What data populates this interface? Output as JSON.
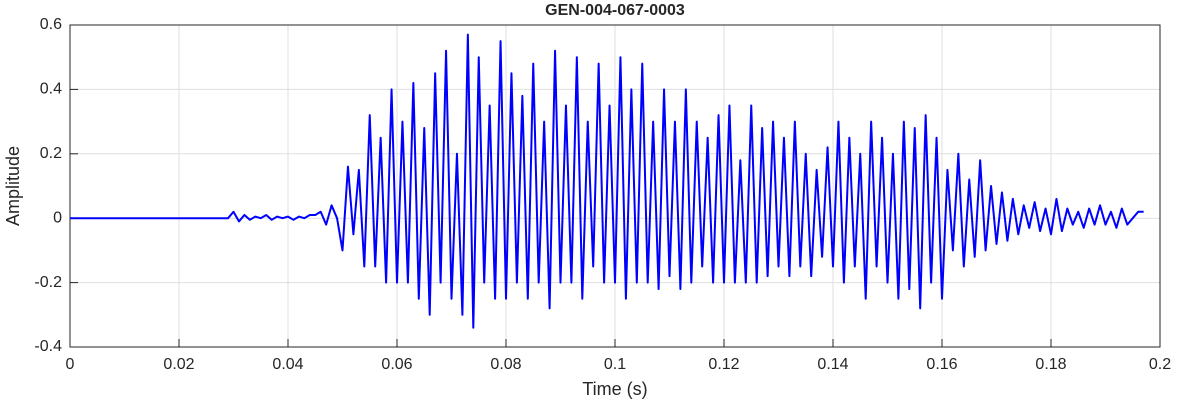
{
  "chart_data": {
    "type": "line",
    "title": "GEN-004-067-0003",
    "x_label": "Time (s)",
    "y_label": "Amplitude",
    "x": [
      0,
      0.001,
      0.002,
      0.003,
      0.004,
      0.005,
      0.006,
      0.007,
      0.008,
      0.009,
      0.01,
      0.011,
      0.012,
      0.013,
      0.014,
      0.015,
      0.016,
      0.017,
      0.018,
      0.019,
      0.02,
      0.021,
      0.022,
      0.023,
      0.024,
      0.025,
      0.026,
      0.027,
      0.028,
      0.029,
      0.03,
      0.031,
      0.032,
      0.033,
      0.034,
      0.035,
      0.036,
      0.037,
      0.038,
      0.039,
      0.04,
      0.041,
      0.042,
      0.043,
      0.044,
      0.045,
      0.046,
      0.047,
      0.048,
      0.049,
      0.05,
      0.051,
      0.052,
      0.053,
      0.054,
      0.055,
      0.056,
      0.057,
      0.058,
      0.059,
      0.06,
      0.061,
      0.062,
      0.063,
      0.064,
      0.065,
      0.066,
      0.067,
      0.068,
      0.069,
      0.07,
      0.071,
      0.072,
      0.073,
      0.074,
      0.075,
      0.076,
      0.077,
      0.078,
      0.079,
      0.08,
      0.081,
      0.082,
      0.083,
      0.084,
      0.085,
      0.086,
      0.087,
      0.088,
      0.089,
      0.09,
      0.091,
      0.092,
      0.093,
      0.094,
      0.095,
      0.096,
      0.097,
      0.098,
      0.099,
      0.1,
      0.101,
      0.102,
      0.103,
      0.104,
      0.105,
      0.106,
      0.107,
      0.108,
      0.109,
      0.11,
      0.111,
      0.112,
      0.113,
      0.114,
      0.115,
      0.116,
      0.117,
      0.118,
      0.119,
      0.12,
      0.121,
      0.122,
      0.123,
      0.124,
      0.125,
      0.126,
      0.127,
      0.128,
      0.129,
      0.13,
      0.131,
      0.132,
      0.133,
      0.134,
      0.135,
      0.136,
      0.137,
      0.138,
      0.139,
      0.14,
      0.141,
      0.142,
      0.143,
      0.144,
      0.145,
      0.146,
      0.147,
      0.148,
      0.149,
      0.15,
      0.151,
      0.152,
      0.153,
      0.154,
      0.155,
      0.156,
      0.157,
      0.158,
      0.159,
      0.16,
      0.161,
      0.162,
      0.163,
      0.164,
      0.165,
      0.166,
      0.167,
      0.168,
      0.169,
      0.17,
      0.171,
      0.172,
      0.173,
      0.174,
      0.175,
      0.176,
      0.177,
      0.178,
      0.179,
      0.18,
      0.181,
      0.182,
      0.183,
      0.184,
      0.185,
      0.186,
      0.187,
      0.188,
      0.189,
      0.19,
      0.191,
      0.192,
      0.193,
      0.194,
      0.195,
      0.196,
      0.197
    ],
    "values": [
      0,
      0,
      0,
      0,
      0,
      0,
      0,
      0,
      0,
      0,
      0,
      0,
      0,
      0,
      0,
      0,
      0,
      0,
      0,
      0,
      0,
      0,
      0,
      0,
      0,
      0,
      0,
      0,
      0,
      0,
      0.02,
      -0.01,
      0.01,
      -0.005,
      0.005,
      0,
      0.01,
      -0.005,
      0.005,
      0,
      0.005,
      -0.005,
      0.005,
      0,
      0.01,
      0.01,
      0.02,
      -0.02,
      0.04,
      0,
      -0.1,
      0.16,
      -0.05,
      0.15,
      -0.15,
      0.32,
      -0.15,
      0.25,
      -0.2,
      0.4,
      -0.2,
      0.3,
      -0.2,
      0.42,
      -0.25,
      0.28,
      -0.3,
      0.45,
      -0.2,
      0.52,
      -0.25,
      0.2,
      -0.3,
      0.57,
      -0.34,
      0.5,
      -0.2,
      0.35,
      -0.25,
      0.55,
      -0.25,
      0.45,
      -0.2,
      0.38,
      -0.25,
      0.48,
      -0.2,
      0.3,
      -0.28,
      0.52,
      -0.2,
      0.35,
      -0.2,
      0.5,
      -0.25,
      0.3,
      -0.15,
      0.48,
      -0.2,
      0.35,
      -0.2,
      0.5,
      -0.25,
      0.4,
      -0.2,
      0.48,
      -0.2,
      0.3,
      -0.22,
      0.4,
      -0.18,
      0.3,
      -0.22,
      0.4,
      -0.2,
      0.3,
      -0.15,
      0.25,
      -0.2,
      0.32,
      -0.2,
      0.35,
      -0.2,
      0.18,
      -0.2,
      0.35,
      -0.2,
      0.28,
      -0.18,
      0.3,
      -0.15,
      0.25,
      -0.18,
      0.3,
      -0.15,
      0.2,
      -0.18,
      0.15,
      -0.12,
      0.22,
      -0.15,
      0.3,
      -0.2,
      0.25,
      -0.15,
      0.2,
      -0.25,
      0.3,
      -0.15,
      0.25,
      -0.2,
      0.2,
      -0.25,
      0.3,
      -0.22,
      0.28,
      -0.28,
      0.32,
      -0.2,
      0.25,
      -0.25,
      0.15,
      -0.1,
      0.2,
      -0.15,
      0.12,
      -0.12,
      0.18,
      -0.1,
      0.1,
      -0.08,
      0.08,
      -0.07,
      0.06,
      -0.05,
      0.04,
      -0.03,
      0.05,
      -0.04,
      0.03,
      -0.05,
      0.06,
      -0.04,
      0.03,
      -0.02,
      0.02,
      -0.03,
      0.03,
      -0.02,
      0.04,
      -0.02,
      0.02,
      -0.03,
      0.03,
      -0.02,
      0,
      0.02,
      0.02
    ],
    "color": "#0000ff",
    "xlim": [
      0,
      0.2
    ],
    "xticks": [
      0,
      0.02,
      0.04,
      0.06,
      0.08,
      0.1,
      0.12,
      0.14,
      0.16,
      0.18,
      0.2
    ],
    "ylim": [
      -0.4,
      0.6
    ],
    "yticks": [
      -0.4,
      -0.2,
      0,
      0.2,
      0.4,
      0.6
    ],
    "grid": true
  }
}
